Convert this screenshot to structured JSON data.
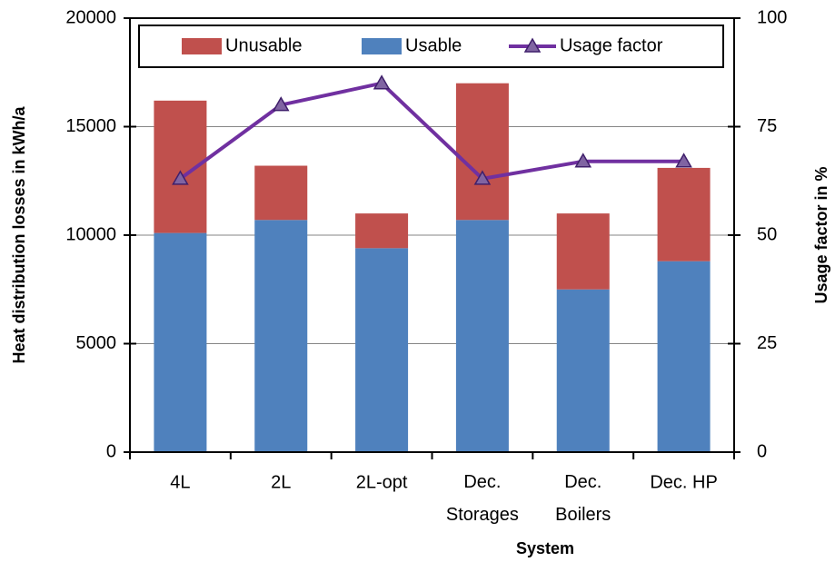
{
  "chart_data": {
    "type": "bar",
    "stacked": true,
    "categories": [
      "4L",
      "2L",
      "2L-opt",
      "Dec.\nStorages",
      "Dec.\nBoilers",
      "Dec. HP"
    ],
    "series": [
      {
        "name": "Usable",
        "color": "#4f81bd",
        "values": [
          10100,
          10700,
          9400,
          10700,
          7500,
          8800
        ]
      },
      {
        "name": "Unusable",
        "color": "#c0504d",
        "values": [
          6100,
          2500,
          1600,
          6300,
          3500,
          4300
        ]
      },
      {
        "name": "Usage factor",
        "color": "#7030a0",
        "type": "line",
        "axis": "y2",
        "marker": "triangle",
        "values": [
          63,
          80,
          85,
          63,
          67,
          67
        ]
      }
    ],
    "legend_order": [
      1,
      0,
      2
    ],
    "x_label": "System",
    "y_label": "Heat distribution losses in kWh/a",
    "y2_label": "Usage factor in %",
    "ylim": [
      0,
      20000
    ],
    "yticks": [
      0,
      5000,
      10000,
      15000,
      20000
    ],
    "y2lim": [
      0,
      100
    ],
    "y2ticks": [
      0,
      25,
      50,
      75,
      100
    ],
    "grid": true,
    "legend": "top"
  }
}
